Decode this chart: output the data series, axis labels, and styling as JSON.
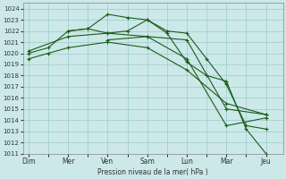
{
  "xlabel": "Pression niveau de la mer( hPa )",
  "ylim": [
    1011,
    1024.5
  ],
  "yticks": [
    1011,
    1012,
    1013,
    1014,
    1015,
    1016,
    1017,
    1018,
    1019,
    1020,
    1021,
    1022,
    1023,
    1024
  ],
  "xtick_labels": [
    "Dim",
    "Mer",
    "Ven",
    "Sam",
    "Lun",
    "Mar",
    "Jeu"
  ],
  "xtick_positions": [
    0,
    14,
    28,
    42,
    56,
    70,
    84
  ],
  "xlim": [
    -2,
    90
  ],
  "bg_color": "#cce8e8",
  "grid_color": "#99cccc",
  "line_color": "#1a5c1a",
  "lines": [
    {
      "x": [
        0,
        7,
        14,
        28,
        42,
        56,
        70,
        84
      ],
      "y": [
        1019.5,
        1020.0,
        1020.5,
        1021.0,
        1020.5,
        1018.5,
        1015.5,
        1014.5
      ]
    },
    {
      "x": [
        0,
        7,
        14,
        21,
        28,
        35,
        42,
        49,
        56,
        63,
        70,
        77,
        84
      ],
      "y": [
        1020.0,
        1020.5,
        1022.0,
        1022.2,
        1023.5,
        1023.2,
        1023.0,
        1021.8,
        1019.2,
        1018.0,
        1017.5,
        1013.2,
        1011.0
      ]
    },
    {
      "x": [
        14,
        21,
        28,
        35,
        42,
        49,
        56,
        63,
        70,
        77,
        84
      ],
      "y": [
        1022.0,
        1022.2,
        1021.8,
        1022.0,
        1023.0,
        1022.0,
        1021.8,
        1019.5,
        1017.2,
        1013.5,
        1013.2
      ]
    },
    {
      "x": [
        28,
        42,
        56,
        70,
        84
      ],
      "y": [
        1021.2,
        1021.5,
        1021.2,
        1015.0,
        1014.5
      ]
    },
    {
      "x": [
        0,
        14,
        28,
        42,
        56,
        70,
        84
      ],
      "y": [
        1020.2,
        1021.5,
        1021.8,
        1021.5,
        1019.5,
        1013.5,
        1014.2
      ]
    }
  ],
  "figsize": [
    3.2,
    2.0
  ],
  "dpi": 100
}
